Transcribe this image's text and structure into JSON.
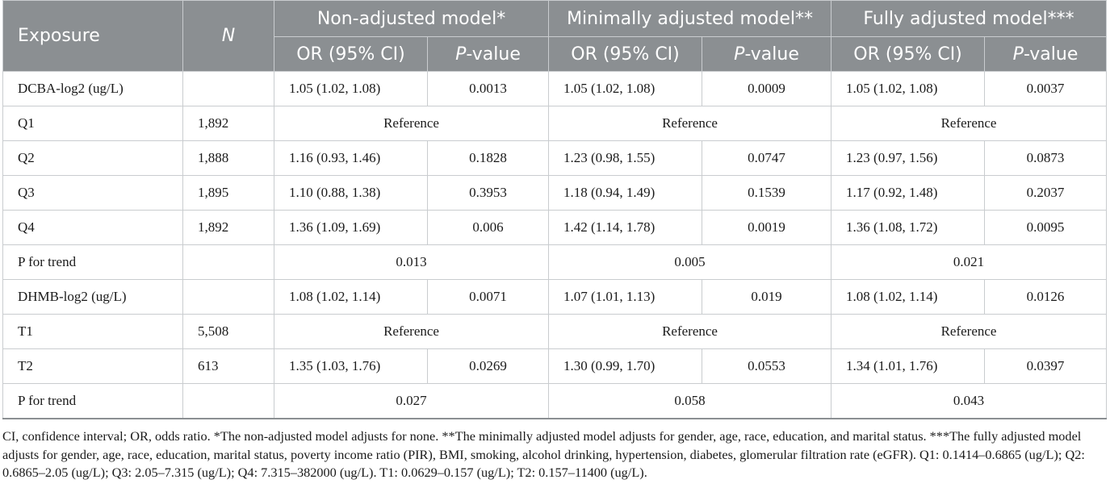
{
  "header": {
    "exposure": "Exposure",
    "n": "N",
    "models": [
      "Non-adjusted model*",
      "Minimally adjusted model**",
      "Fully adjusted model***"
    ],
    "or_label": "OR (95% CI)",
    "p_prefix": "P",
    "p_suffix": "-value"
  },
  "rows": [
    {
      "type": "split",
      "label": "DCBA-log2 (ug/L)",
      "n": "",
      "cells": [
        "1.05 (1.02, 1.08)",
        "0.0013",
        "1.05 (1.02, 1.08)",
        "0.0009",
        "1.05 (1.02, 1.08)",
        "0.0037"
      ]
    },
    {
      "type": "merged",
      "label": "Q1",
      "n": "1,892",
      "cells": [
        "Reference",
        "Reference",
        "Reference"
      ]
    },
    {
      "type": "split",
      "label": "Q2",
      "n": "1,888",
      "cells": [
        "1.16 (0.93, 1.46)",
        "0.1828",
        "1.23 (0.98, 1.55)",
        "0.0747",
        "1.23 (0.97, 1.56)",
        "0.0873"
      ]
    },
    {
      "type": "split",
      "label": "Q3",
      "n": "1,895",
      "cells": [
        "1.10 (0.88, 1.38)",
        "0.3953",
        "1.18 (0.94, 1.49)",
        "0.1539",
        "1.17 (0.92, 1.48)",
        "0.2037"
      ]
    },
    {
      "type": "split",
      "label": "Q4",
      "n": "1,892",
      "cells": [
        "1.36 (1.09, 1.69)",
        "0.006",
        "1.42 (1.14, 1.78)",
        "0.0019",
        "1.36 (1.08, 1.72)",
        "0.0095"
      ]
    },
    {
      "type": "merged",
      "label": "P for trend",
      "n": "",
      "cells": [
        "0.013",
        "0.005",
        "0.021"
      ]
    },
    {
      "type": "split",
      "label": "DHMB-log2 (ug/L)",
      "n": "",
      "cells": [
        "1.08 (1.02, 1.14)",
        "0.0071",
        "1.07 (1.01, 1.13)",
        "0.019",
        "1.08 (1.02, 1.14)",
        "0.0126"
      ]
    },
    {
      "type": "merged",
      "label": "T1",
      "n": "5,508",
      "cells": [
        "Reference",
        "Reference",
        "Reference"
      ]
    },
    {
      "type": "split",
      "label": "T2",
      "n": "613",
      "cells": [
        "1.35 (1.03, 1.76)",
        "0.0269",
        "1.30 (0.99, 1.70)",
        "0.0553",
        "1.34 (1.01, 1.76)",
        "0.0397"
      ]
    },
    {
      "type": "merged",
      "label": "P for trend",
      "n": "",
      "cells": [
        "0.027",
        "0.058",
        "0.043"
      ]
    }
  ],
  "footnote": "CI, confidence interval; OR, odds ratio. *The non-adjusted model adjusts for none. **The minimally adjusted model adjusts for gender, age, race, education, and marital status. ***The fully adjusted model adjusts for gender, age, race, education, marital status, poverty income ratio (PIR), BMI, smoking, alcohol drinking, hypertension, diabetes, glomerular filtration rate (eGFR). Q1: 0.1414–0.6865 (ug/L); Q2: 0.6865–2.05 (ug/L); Q3: 2.05–7.315 (ug/L); Q4: 7.315–382000 (ug/L). T1: 0.0629–0.157 (ug/L); T2: 0.157–11400 (ug/L)."
}
